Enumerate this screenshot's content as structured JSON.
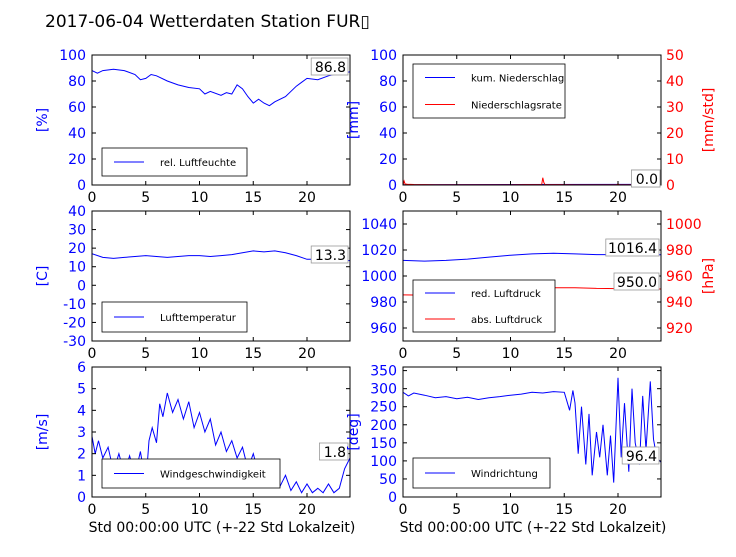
{
  "title": "2017-06-04 Wetterdaten Station FUR▯",
  "xlabel": "Std 00:00:00 UTC (+-22 Std Lokalzeit)",
  "colors": {
    "blue": "#0000ff",
    "red": "#ff0000",
    "black": "#000000"
  },
  "chart_data": [
    {
      "type": "line",
      "panel": "humidity",
      "ylabel": "[%]",
      "ylim": [
        0,
        100
      ],
      "yticks": [
        0,
        20,
        40,
        60,
        80,
        100
      ],
      "xlim": [
        0,
        24
      ],
      "xticks": [
        0,
        5,
        10,
        15,
        20
      ],
      "legend": "lower-left",
      "current_value": "86.8",
      "series": [
        {
          "name": "rel. Luftfeuchte",
          "color": "#0000ff",
          "axis": "left",
          "x": [
            0,
            0.5,
            1,
            2,
            3,
            4,
            4.5,
            5,
            5.5,
            6,
            7,
            8,
            9,
            10,
            10.5,
            11,
            12,
            12.5,
            13,
            13.5,
            14,
            14.5,
            15,
            15.5,
            16,
            16.5,
            17,
            18,
            19,
            19.5,
            20,
            21,
            22,
            23,
            24
          ],
          "y": [
            88,
            86,
            88,
            89,
            88,
            85,
            81,
            82,
            85,
            84,
            80,
            77,
            75,
            74,
            70,
            72,
            69,
            71,
            70,
            77,
            74,
            68,
            63,
            66,
            63,
            61,
            64,
            68,
            76,
            79,
            82,
            81,
            84,
            86,
            87
          ]
        }
      ]
    },
    {
      "type": "line",
      "panel": "precipitation",
      "ylabel": "[mm]",
      "ylim": [
        0,
        100
      ],
      "yticks": [
        0,
        20,
        40,
        60,
        80,
        100
      ],
      "y2label": "[mm/std]",
      "y2lim": [
        0,
        50
      ],
      "y2ticks": [
        0,
        10,
        20,
        30,
        40,
        50
      ],
      "xlim": [
        0,
        24
      ],
      "xticks": [
        0,
        5,
        10,
        15,
        20
      ],
      "legend": "upper-left",
      "current_values": [
        "0.0",
        "0.0"
      ],
      "series": [
        {
          "name": "kum. Niederschlag",
          "color": "#0000ff",
          "axis": "left",
          "x": [
            0,
            24
          ],
          "y": [
            0.2,
            0.5
          ]
        },
        {
          "name": "Niederschlagsrate",
          "color": "#ff0000",
          "axis": "right",
          "x": [
            0,
            0.1,
            0.2,
            0.4,
            1,
            3,
            5,
            10,
            12.9,
            13,
            13.1,
            13.2,
            16,
            19.9,
            20,
            20.1,
            24
          ],
          "y": [
            0,
            1.5,
            0.4,
            0.3,
            0.2,
            0.1,
            0.1,
            0.1,
            0.2,
            2.8,
            1.0,
            0.2,
            0.1,
            0.1,
            0.4,
            0.1,
            0.1
          ]
        }
      ]
    },
    {
      "type": "line",
      "panel": "temperature",
      "ylabel": "[C]",
      "ylim": [
        -30,
        40
      ],
      "yticks": [
        -30,
        -20,
        -10,
        0,
        10,
        20,
        30,
        40
      ],
      "xlim": [
        0,
        24
      ],
      "xticks": [
        0,
        5,
        10,
        15,
        20
      ],
      "legend": "lower-left",
      "current_value": "13.3",
      "series": [
        {
          "name": "Lufttemperatur",
          "color": "#0000ff",
          "axis": "left",
          "x": [
            0,
            1,
            2,
            3,
            4,
            5,
            6,
            7,
            8,
            9,
            10,
            11,
            12,
            13,
            14,
            15,
            16,
            17,
            18,
            19,
            20,
            21,
            22,
            23,
            24
          ],
          "y": [
            17,
            15,
            14.5,
            15,
            15.5,
            16,
            15.5,
            15,
            15.5,
            16,
            16,
            15.5,
            16,
            16.5,
            17.5,
            18.5,
            18,
            18.5,
            17.5,
            16,
            14,
            14,
            13.5,
            13.5,
            13.3
          ]
        }
      ]
    },
    {
      "type": "line",
      "panel": "pressure",
      "ylim": [
        950,
        1050
      ],
      "yticks": [
        960,
        980,
        1000,
        1020,
        1040
      ],
      "y2label": "[hPa]",
      "y2lim": [
        910,
        1010
      ],
      "y2ticks": [
        920,
        940,
        960,
        980,
        1000
      ],
      "xlim": [
        0,
        24
      ],
      "xticks": [
        0,
        5,
        10,
        15,
        20
      ],
      "legend": "lower-left",
      "current_values": [
        "1016.4",
        "950.0"
      ],
      "series": [
        {
          "name": "red. Luftdruck",
          "color": "#0000ff",
          "axis": "left",
          "x": [
            0,
            2,
            4,
            6,
            8,
            10,
            12,
            14,
            16,
            18,
            20,
            22,
            24
          ],
          "y": [
            1012,
            1011.5,
            1012,
            1013,
            1014.5,
            1016,
            1017,
            1017.5,
            1017,
            1016.5,
            1016.5,
            1016.4,
            1016.4
          ]
        },
        {
          "name": "abs. Luftdruck",
          "color": "#ff0000",
          "axis": "right",
          "x": [
            0,
            2,
            4,
            6,
            8,
            10,
            12,
            14,
            16,
            18,
            20,
            22,
            24
          ],
          "y": [
            945.5,
            945.3,
            945.8,
            946.8,
            948,
            949.5,
            950.5,
            951,
            951,
            950.5,
            950.3,
            950.2,
            950
          ]
        }
      ]
    },
    {
      "type": "line",
      "panel": "wind-speed",
      "ylabel": "[m/s]",
      "ylim": [
        0,
        6
      ],
      "yticks": [
        0,
        1,
        2,
        3,
        4,
        5,
        6
      ],
      "xlim": [
        0,
        24
      ],
      "xticks": [
        0,
        5,
        10,
        15,
        20
      ],
      "legend": "lower-center",
      "current_value": "1.8",
      "series": [
        {
          "name": "Windgeschwindigkeit",
          "color": "#0000ff",
          "axis": "left",
          "x": [
            0,
            0.3,
            0.6,
            1,
            1.5,
            2,
            2.5,
            3,
            3.5,
            4,
            4.5,
            5,
            5.3,
            5.6,
            6,
            6.3,
            6.6,
            7,
            7.5,
            8,
            8.5,
            9,
            9.5,
            10,
            10.5,
            11,
            11.5,
            12,
            12.5,
            13,
            13.5,
            14,
            14.5,
            15,
            15.5,
            16,
            16.5,
            17,
            17.5,
            18,
            18.5,
            19,
            19.5,
            20,
            20.5,
            21,
            21.5,
            22,
            22.5,
            23,
            23.5,
            24
          ],
          "y": [
            2.8,
            2.0,
            2.6,
            1.8,
            2.3,
            1.2,
            2.0,
            1.1,
            1.9,
            1.0,
            2.1,
            0.6,
            2.6,
            3.2,
            2.5,
            4.3,
            3.7,
            4.8,
            3.9,
            4.5,
            3.6,
            4.4,
            3.2,
            3.9,
            3.0,
            3.6,
            2.4,
            3.0,
            2.1,
            2.6,
            1.8,
            2.3,
            1.3,
            2.0,
            1.1,
            1.6,
            0.7,
            1.5,
            0.5,
            1.0,
            0.3,
            0.7,
            0.2,
            0.6,
            0.2,
            0.4,
            0.2,
            0.6,
            0.2,
            0.4,
            1.3,
            1.8
          ]
        }
      ]
    },
    {
      "type": "line",
      "panel": "wind-direction",
      "ylabel": "[deg]",
      "ylim": [
        0,
        360
      ],
      "yticks": [
        0,
        50,
        100,
        150,
        200,
        250,
        300,
        350
      ],
      "xlim": [
        0,
        24
      ],
      "xticks": [
        0,
        5,
        10,
        15,
        20
      ],
      "legend": "lower-left",
      "current_value": "96.4",
      "series": [
        {
          "name": "Windrichtung",
          "color": "#0000ff",
          "axis": "left",
          "x": [
            0,
            0.5,
            1,
            2,
            3,
            4,
            5,
            6,
            7,
            8,
            9,
            10,
            11,
            12,
            13,
            14,
            15,
            15.5,
            15.8,
            16,
            16.3,
            16.6,
            17,
            17.3,
            17.6,
            18,
            18.3,
            18.6,
            19,
            19.3,
            19.6,
            20,
            20.3,
            20.6,
            21,
            21.3,
            21.6,
            22,
            22.3,
            22.6,
            23,
            23.3,
            23.6,
            24
          ],
          "y": [
            290,
            280,
            288,
            282,
            275,
            278,
            272,
            276,
            270,
            275,
            278,
            282,
            285,
            290,
            288,
            292,
            290,
            240,
            295,
            260,
            120,
            250,
            90,
            230,
            60,
            180,
            110,
            200,
            60,
            170,
            40,
            330,
            110,
            260,
            70,
            300,
            150,
            90,
            280,
            130,
            320,
            160,
            110,
            96
          ]
        }
      ]
    }
  ]
}
